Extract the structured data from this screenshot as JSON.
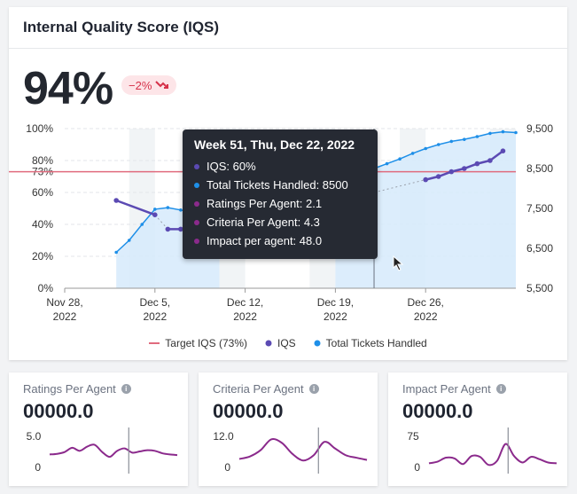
{
  "header": {
    "title": "Internal Quality Score (IQS)"
  },
  "kpi": {
    "value": "94%",
    "delta": "−2%",
    "delta_icon": "trend-down-icon"
  },
  "colors": {
    "iqs": "#5b4ab3",
    "tickets": "#1e8fe8",
    "target": "#e06b7e",
    "tickets_fill": "#d6eafb",
    "purple": "#8b2a8c",
    "delta_bg": "#fde5e8",
    "delta_text": "#d6324a"
  },
  "tooltip": {
    "title": "Week 51, Thu, Dec 22, 2022",
    "rows": [
      {
        "label": "IQS: 60%",
        "color": "#5b4ab3"
      },
      {
        "label": "Total Tickets Handled: 8500",
        "color": "#1e8fe8"
      },
      {
        "label": "Ratings Per Agent: 2.1",
        "color": "#8b2a8c"
      },
      {
        "label": "Criteria Per Agent: 4.3",
        "color": "#8b2a8c"
      },
      {
        "label": "Impact per agent: 48.0",
        "color": "#8b2a8c"
      }
    ]
  },
  "legend": {
    "target": "Target IQS (73%)",
    "iqs": "IQS",
    "tickets": "Total Tickets Handled"
  },
  "chart_data": [
    {
      "type": "line",
      "title": "",
      "y_left_ticks": [
        "100%",
        "80%",
        "73%",
        "60%",
        "40%",
        "20%",
        "0%"
      ],
      "y_left_range": [
        0,
        100
      ],
      "y_right_ticks": [
        "9,500",
        "8,500",
        "7,500",
        "6,500",
        "5,500"
      ],
      "y_right_range": [
        5500,
        9500
      ],
      "x_ticks": [
        [
          "Nov 28,",
          "2022"
        ],
        [
          "Dec 5,",
          "2022"
        ],
        [
          "Dec 12,",
          "2022"
        ],
        [
          "Dec 19,",
          "2022"
        ],
        [
          "Dec 26,",
          "2022"
        ]
      ],
      "x_range_days": [
        "2022-11-28",
        "2023-01-02"
      ],
      "target": 73,
      "series": [
        {
          "name": "IQS",
          "axis": "left",
          "x": [
            "2022-12-02",
            "2022-12-05",
            "2022-12-06",
            "2022-12-07",
            "2022-12-08",
            "2022-12-09",
            "2022-12-10",
            "2022-12-19",
            "2022-12-20",
            "2022-12-21",
            "2022-12-22",
            "2022-12-26",
            "2022-12-27",
            "2022-12-28",
            "2022-12-29",
            "2022-12-30",
            "2022-12-31",
            "2023-01-01"
          ],
          "y": [
            55,
            46,
            37,
            37,
            38,
            40,
            42,
            60,
            60,
            60,
            60,
            68,
            70,
            73,
            75,
            78,
            80,
            86
          ]
        },
        {
          "name": "Total Tickets Handled",
          "axis": "right",
          "x": [
            "2022-12-02",
            "2022-12-03",
            "2022-12-04",
            "2022-12-05",
            "2022-12-06",
            "2022-12-07",
            "2022-12-08",
            "2022-12-09",
            "2022-12-10",
            "2022-12-19",
            "2022-12-20",
            "2022-12-21",
            "2022-12-22",
            "2022-12-23",
            "2022-12-24",
            "2022-12-25",
            "2022-12-26",
            "2022-12-27",
            "2022-12-28",
            "2022-12-29",
            "2022-12-30",
            "2022-12-31",
            "2023-01-01",
            "2023-01-02"
          ],
          "y": [
            6400,
            6700,
            7100,
            7480,
            7520,
            7460,
            7380,
            7250,
            7100,
            8100,
            8230,
            8350,
            8500,
            8620,
            8740,
            8880,
            9000,
            9100,
            9180,
            9230,
            9300,
            9380,
            9420,
            9400
          ]
        }
      ]
    },
    {
      "type": "line",
      "title": "Ratings Per Agent",
      "y_ticks": [
        "5.0",
        "0"
      ],
      "values": [
        2.0,
        2.1,
        2.4,
        3.1,
        2.6,
        3.3,
        3.6,
        2.4,
        1.6,
        2.6,
        3.0,
        2.3,
        2.5,
        2.7,
        2.6,
        2.2,
        2.0,
        1.9
      ]
    },
    {
      "type": "line",
      "title": "Criteria Per Agent",
      "y_ticks": [
        "12.0",
        "0"
      ],
      "values": [
        3.0,
        4.0,
        6.5,
        10.8,
        9.4,
        5.0,
        2.4,
        4.5,
        9.8,
        7.2,
        4.5,
        3.5,
        2.6
      ]
    },
    {
      "type": "line",
      "title": "Impact Per Agent",
      "y_ticks": [
        "75",
        "0"
      ],
      "values": [
        8,
        12,
        22,
        20,
        6,
        26,
        24,
        4,
        14,
        56,
        26,
        10,
        24,
        18,
        10,
        8
      ]
    }
  ],
  "mini": [
    {
      "title": "Ratings Per Agent",
      "value": "00000.0"
    },
    {
      "title": "Criteria Per Agent",
      "value": "00000.0"
    },
    {
      "title": "Impact Per Agent",
      "value": "00000.0"
    }
  ]
}
